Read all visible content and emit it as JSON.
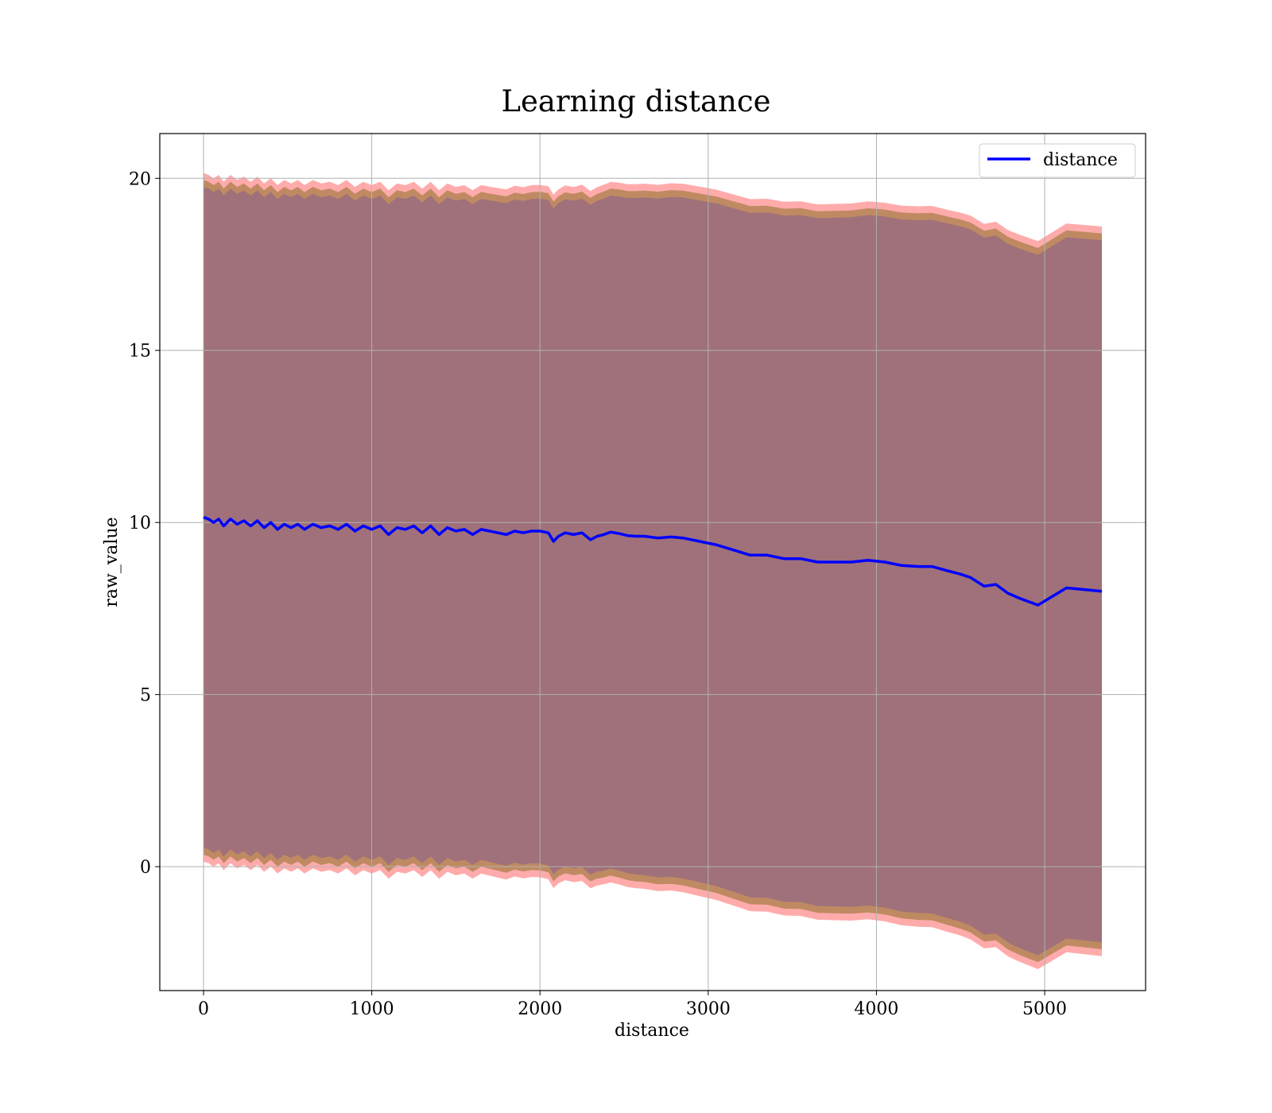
{
  "chart_data": {
    "type": "line",
    "title": "Learning distance",
    "xlabel": "distance",
    "ylabel": "raw_value",
    "xlim": [
      -260,
      5600
    ],
    "ylim": [
      -3.6,
      21.3
    ],
    "xticks": [
      0,
      1000,
      2000,
      3000,
      4000,
      5000
    ],
    "yticks": [
      0,
      5,
      10,
      15,
      20
    ],
    "grid": true,
    "legend": {
      "placement": "top-right",
      "entries": [
        "distance"
      ]
    },
    "colors": {
      "line": "#0000ff",
      "band_outer": "#ff6666",
      "band_mid": "#b8865a",
      "band_inner": "#a0717a"
    },
    "series": [
      {
        "name": "distance",
        "x": [
          0,
          30,
          60,
          90,
          120,
          160,
          200,
          240,
          280,
          320,
          360,
          400,
          440,
          480,
          520,
          560,
          600,
          650,
          700,
          750,
          800,
          850,
          900,
          950,
          1000,
          1050,
          1100,
          1150,
          1200,
          1250,
          1300,
          1350,
          1400,
          1450,
          1500,
          1550,
          1600,
          1650,
          1700,
          1750,
          1800,
          1850,
          1900,
          1950,
          2000,
          2050,
          2080,
          2110,
          2150,
          2200,
          2250,
          2300,
          2340,
          2380,
          2420,
          2470,
          2520,
          2570,
          2620,
          2700,
          2780,
          2850,
          2950,
          3050,
          3150,
          3250,
          3350,
          3450,
          3550,
          3650,
          3750,
          3850,
          3950,
          4050,
          4150,
          4250,
          4330,
          4420,
          4500,
          4560,
          4640,
          4710,
          4780,
          4850,
          4960,
          5130,
          5340
        ],
        "y": [
          10.15,
          10.1,
          10.0,
          10.1,
          9.9,
          10.1,
          9.95,
          10.05,
          9.9,
          10.05,
          9.85,
          10.0,
          9.8,
          9.95,
          9.85,
          9.95,
          9.8,
          9.95,
          9.85,
          9.9,
          9.8,
          9.95,
          9.75,
          9.9,
          9.8,
          9.9,
          9.65,
          9.85,
          9.8,
          9.9,
          9.7,
          9.9,
          9.65,
          9.85,
          9.75,
          9.8,
          9.65,
          9.8,
          9.75,
          9.7,
          9.65,
          9.75,
          9.7,
          9.75,
          9.75,
          9.7,
          9.45,
          9.6,
          9.7,
          9.65,
          9.7,
          9.5,
          9.6,
          9.65,
          9.72,
          9.68,
          9.62,
          9.6,
          9.6,
          9.55,
          9.58,
          9.55,
          9.45,
          9.35,
          9.2,
          9.05,
          9.05,
          8.95,
          8.95,
          8.85,
          8.85,
          8.85,
          8.9,
          8.85,
          8.75,
          8.72,
          8.72,
          8.6,
          8.5,
          8.4,
          8.15,
          8.2,
          7.95,
          7.8,
          7.6,
          8.1,
          8.0
        ]
      }
    ],
    "bands": {
      "outer_half_width": 10.0,
      "mid_half_width": 9.8,
      "inner_half_width": 9.6,
      "widening": [
        0,
        0,
        0,
        0,
        0.1,
        0.3,
        0.45,
        0.6
      ]
    }
  }
}
